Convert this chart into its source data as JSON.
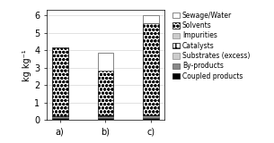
{
  "categories": [
    "a)",
    "b)",
    "c)"
  ],
  "ylabel": "kg kg⁻¹",
  "ylim": [
    0,
    6.3
  ],
  "yticks": [
    0,
    1,
    2,
    3,
    4,
    5,
    6
  ],
  "segments": {
    "Coupled products": [
      0.13,
      0.13,
      0.13
    ],
    "By-products": [
      0.09,
      0.09,
      0.09
    ],
    "Substrates (excess)": [
      0.0,
      0.0,
      0.0
    ],
    "Catalysts": [
      0.0,
      0.08,
      0.0
    ],
    "Impurities": [
      0.0,
      0.0,
      0.08
    ],
    "Solvents": [
      3.93,
      2.55,
      5.22
    ],
    "Sewage/Water": [
      0.0,
      1.0,
      0.48
    ]
  },
  "bar_width": 0.35,
  "figsize": [
    3.05,
    1.6
  ],
  "dpi": 100,
  "subplots_adjust": [
    0.17,
    0.6,
    0.93,
    0.16
  ]
}
